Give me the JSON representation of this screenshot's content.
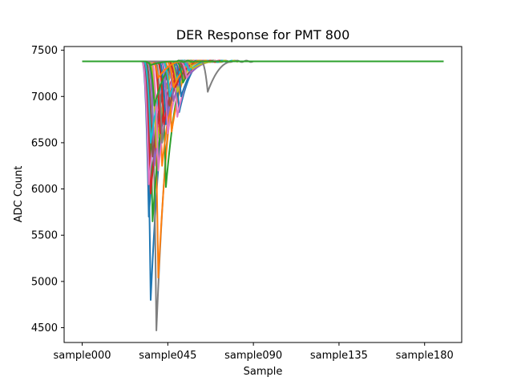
{
  "chart_data": {
    "type": "line",
    "title": "DER Response for PMT 800",
    "xlabel": "Sample",
    "ylabel": "ADC Count",
    "xlim": [
      -9.5,
      199.5
    ],
    "ylim": [
      4340,
      7540
    ],
    "grid": false,
    "legend": "none",
    "x_ticks": [
      {
        "value": 0,
        "label": "sample000"
      },
      {
        "value": 45,
        "label": "sample045"
      },
      {
        "value": 90,
        "label": "sample090"
      },
      {
        "value": 135,
        "label": "sample135"
      },
      {
        "value": 180,
        "label": "sample180"
      }
    ],
    "y_ticks": [
      4500,
      5000,
      5500,
      6000,
      6500,
      7000,
      7500
    ],
    "baseline": 7380,
    "colors": [
      "#1f77b4",
      "#ff7f0e",
      "#2ca02c",
      "#d62728",
      "#9467bd",
      "#8c564b",
      "#e377c2",
      "#7f7f7f",
      "#bcbd22",
      "#17becf"
    ],
    "series": [
      {
        "color": "#1f77b4",
        "x_start": 0,
        "x_end": 190,
        "min_x": 36,
        "min_y": 4800
      },
      {
        "color": "#7f7f7f",
        "x_start": 0,
        "x_end": 190,
        "min_x": 39,
        "min_y": 4470
      },
      {
        "color": "#ff7f0e",
        "x_start": 0,
        "x_end": 120,
        "min_x": 40,
        "min_y": 5040
      },
      {
        "color": "#1f77b4",
        "x_start": 0,
        "x_end": 190,
        "min_x": 35,
        "min_y": 5700
      },
      {
        "color": "#2ca02c",
        "x_start": 0,
        "x_end": 190,
        "min_x": 37,
        "min_y": 5650
      },
      {
        "color": "#d62728",
        "x_start": 0,
        "x_end": 190,
        "min_x": 36,
        "min_y": 5950
      },
      {
        "color": "#e377c2",
        "x_start": 0,
        "x_end": 190,
        "min_x": 35,
        "min_y": 6050
      },
      {
        "color": "#2ca02c",
        "x_start": 0,
        "x_end": 190,
        "min_x": 44,
        "min_y": 6020
      },
      {
        "color": "#9467bd",
        "x_start": 0,
        "x_end": 190,
        "min_x": 38,
        "min_y": 6250
      },
      {
        "color": "#8c564b",
        "x_start": 0,
        "x_end": 190,
        "min_x": 37,
        "min_y": 6350
      },
      {
        "color": "#bcbd22",
        "x_start": 0,
        "x_end": 190,
        "min_x": 39,
        "min_y": 6450
      },
      {
        "color": "#17becf",
        "x_start": 0,
        "x_end": 190,
        "min_x": 36,
        "min_y": 6500
      },
      {
        "color": "#ff7f0e",
        "x_start": 0,
        "x_end": 190,
        "min_x": 42,
        "min_y": 6250
      },
      {
        "color": "#d62728",
        "x_start": 0,
        "x_end": 190,
        "min_x": 41,
        "min_y": 6600
      },
      {
        "color": "#e377c2",
        "x_start": 0,
        "x_end": 190,
        "min_x": 40,
        "min_y": 6200
      },
      {
        "color": "#7f7f7f",
        "x_start": 0,
        "x_end": 190,
        "min_x": 42,
        "min_y": 6500
      },
      {
        "color": "#1f77b4",
        "x_start": 0,
        "x_end": 190,
        "min_x": 44,
        "min_y": 6700
      },
      {
        "color": "#d62728",
        "x_start": 0,
        "x_end": 190,
        "min_x": 43,
        "min_y": 6700
      },
      {
        "color": "#e377c2",
        "x_start": 0,
        "x_end": 190,
        "min_x": 45,
        "min_y": 6600
      },
      {
        "color": "#ff7f0e",
        "x_start": 0,
        "x_end": 190,
        "min_x": 47,
        "min_y": 6620
      },
      {
        "color": "#9467bd",
        "x_start": 0,
        "x_end": 190,
        "min_x": 45,
        "min_y": 6800
      },
      {
        "color": "#2ca02c",
        "x_start": 0,
        "x_end": 190,
        "min_x": 38,
        "min_y": 6900
      },
      {
        "color": "#8c564b",
        "x_start": 0,
        "x_end": 190,
        "min_x": 46,
        "min_y": 6900
      },
      {
        "color": "#1f77b4",
        "x_start": 0,
        "x_end": 190,
        "min_x": 51,
        "min_y": 6830
      },
      {
        "color": "#e377c2",
        "x_start": 0,
        "x_end": 190,
        "min_x": 50,
        "min_y": 6780
      },
      {
        "color": "#9467bd",
        "x_start": 0,
        "x_end": 190,
        "min_x": 48,
        "min_y": 6950
      },
      {
        "color": "#17becf",
        "x_start": 0,
        "x_end": 190,
        "min_x": 46,
        "min_y": 7000
      },
      {
        "color": "#bcbd22",
        "x_start": 0,
        "x_end": 190,
        "min_x": 50,
        "min_y": 7050
      },
      {
        "color": "#d62728",
        "x_start": 0,
        "x_end": 190,
        "min_x": 49,
        "min_y": 7100
      },
      {
        "color": "#1f77b4",
        "x_start": 0,
        "x_end": 190,
        "min_x": 52,
        "min_y": 7000
      },
      {
        "color": "#ff7f0e",
        "x_start": 0,
        "x_end": 190,
        "min_x": 48,
        "min_y": 7100
      },
      {
        "color": "#2ca02c",
        "x_start": 0,
        "x_end": 190,
        "min_x": 53,
        "min_y": 7150
      },
      {
        "color": "#8c564b",
        "x_start": 0,
        "x_end": 190,
        "min_x": 54,
        "min_y": 7200
      },
      {
        "color": "#e377c2",
        "x_start": 0,
        "x_end": 190,
        "min_x": 55,
        "min_y": 7200
      },
      {
        "color": "#9467bd",
        "x_start": 0,
        "x_end": 190,
        "min_x": 57,
        "min_y": 7250
      },
      {
        "color": "#17becf",
        "x_start": 0,
        "x_end": 190,
        "min_x": 56,
        "min_y": 7280
      },
      {
        "color": "#bcbd22",
        "x_start": 0,
        "x_end": 190,
        "min_x": 58,
        "min_y": 7300
      },
      {
        "color": "#ff7f0e",
        "x_start": 0,
        "x_end": 190,
        "min_x": 40,
        "min_y": 7200
      },
      {
        "color": "#7f7f7f",
        "x_start": 0,
        "x_end": 190,
        "min_x": 66,
        "min_y": 7050
      },
      {
        "color": "#2ca02c",
        "x_start": 0,
        "x_end": 190,
        "min_x": 36,
        "min_y": 7340
      }
    ]
  }
}
